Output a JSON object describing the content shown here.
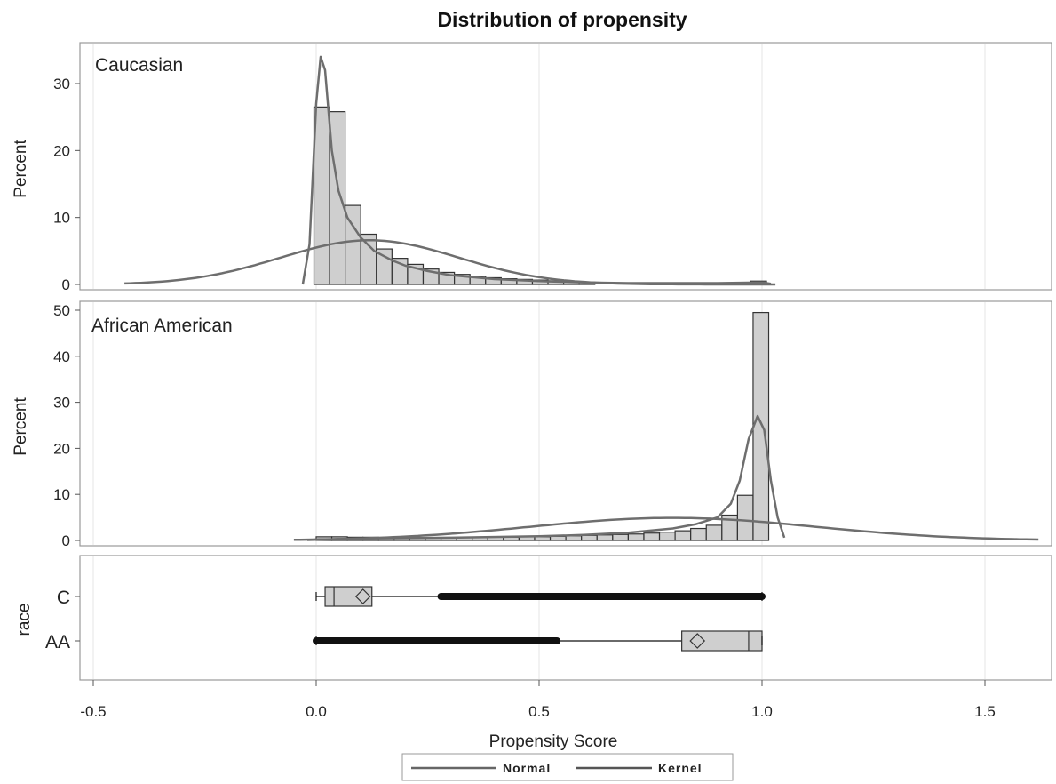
{
  "chart_data": {
    "type": "histogram",
    "title": "Distribution of propensity",
    "xlabel": "Propensity Score",
    "xlim": [
      -0.55,
      1.65
    ],
    "x_ticks": [
      -0.5,
      0.0,
      0.5,
      1.0,
      1.5
    ],
    "x_tick_labels": [
      "-0.5",
      "0.0",
      "0.5",
      "1.0",
      "1.5"
    ],
    "bin_width": 0.035,
    "grid": true,
    "legend_position": "bottom",
    "legend": [
      {
        "name": "Normal",
        "color": "#666666"
      },
      {
        "name": "Kernel",
        "color": "#555555"
      }
    ],
    "colors": {
      "bar_fill": "#cfcfcf",
      "bar_stroke": "#333333",
      "curve": "#6e6e6e",
      "panel_border": "#999999",
      "whisker": "#111111"
    },
    "panels": [
      {
        "label": "Caucasian",
        "ylabel": "Percent",
        "ylim": [
          -0.5,
          36
        ],
        "y_ticks": [
          0,
          10,
          20,
          30
        ],
        "bins": [
          {
            "x": 0.0,
            "pct": 26.5
          },
          {
            "x": 0.035,
            "pct": 25.8
          },
          {
            "x": 0.07,
            "pct": 11.8
          },
          {
            "x": 0.105,
            "pct": 7.5
          },
          {
            "x": 0.14,
            "pct": 5.3
          },
          {
            "x": 0.175,
            "pct": 3.9
          },
          {
            "x": 0.21,
            "pct": 3.0
          },
          {
            "x": 0.245,
            "pct": 2.3
          },
          {
            "x": 0.28,
            "pct": 1.8
          },
          {
            "x": 0.315,
            "pct": 1.5
          },
          {
            "x": 0.35,
            "pct": 1.2
          },
          {
            "x": 0.385,
            "pct": 1.0
          },
          {
            "x": 0.42,
            "pct": 0.85
          },
          {
            "x": 0.455,
            "pct": 0.75
          },
          {
            "x": 0.49,
            "pct": 0.65
          },
          {
            "x": 0.525,
            "pct": 0.55
          },
          {
            "x": 0.56,
            "pct": 0.45
          },
          {
            "x": 0.595,
            "pct": 0.35
          },
          {
            "x": 0.98,
            "pct": 0.5
          }
        ],
        "normal": {
          "mean": 0.12,
          "sd": 0.2,
          "peak": 6.6,
          "xrange": [
            -0.43,
            1.03
          ]
        },
        "kernel": [
          [
            -0.03,
            0
          ],
          [
            -0.015,
            6
          ],
          [
            -0.005,
            20
          ],
          [
            0.0,
            27
          ],
          [
            0.01,
            34
          ],
          [
            0.02,
            32
          ],
          [
            0.035,
            20
          ],
          [
            0.05,
            14
          ],
          [
            0.07,
            10
          ],
          [
            0.1,
            7
          ],
          [
            0.13,
            5
          ],
          [
            0.17,
            3.6
          ],
          [
            0.2,
            2.8
          ],
          [
            0.25,
            2.0
          ],
          [
            0.3,
            1.4
          ],
          [
            0.4,
            0.8
          ],
          [
            0.5,
            0.5
          ],
          [
            0.6,
            0.3
          ],
          [
            0.7,
            0.2
          ],
          [
            0.8,
            0.2
          ],
          [
            0.9,
            0.2
          ],
          [
            1.0,
            0.3
          ],
          [
            1.02,
            0.1
          ]
        ]
      },
      {
        "label": "African American",
        "ylabel": "Percent",
        "ylim": [
          -1,
          51
        ],
        "y_ticks": [
          0,
          10,
          20,
          30,
          40,
          50
        ],
        "bins": [
          {
            "x": 0.0,
            "pct": 0.8
          },
          {
            "x": 0.035,
            "pct": 0.8
          },
          {
            "x": 0.07,
            "pct": 0.7
          },
          {
            "x": 0.105,
            "pct": 0.7
          },
          {
            "x": 0.14,
            "pct": 0.6
          },
          {
            "x": 0.175,
            "pct": 0.6
          },
          {
            "x": 0.21,
            "pct": 0.6
          },
          {
            "x": 0.245,
            "pct": 0.5
          },
          {
            "x": 0.28,
            "pct": 0.5
          },
          {
            "x": 0.315,
            "pct": 0.6
          },
          {
            "x": 0.35,
            "pct": 0.6
          },
          {
            "x": 0.385,
            "pct": 0.7
          },
          {
            "x": 0.42,
            "pct": 0.7
          },
          {
            "x": 0.455,
            "pct": 0.8
          },
          {
            "x": 0.49,
            "pct": 0.8
          },
          {
            "x": 0.525,
            "pct": 0.9
          },
          {
            "x": 0.56,
            "pct": 1.0
          },
          {
            "x": 0.595,
            "pct": 1.1
          },
          {
            "x": 0.63,
            "pct": 1.2
          },
          {
            "x": 0.665,
            "pct": 1.3
          },
          {
            "x": 0.7,
            "pct": 1.4
          },
          {
            "x": 0.735,
            "pct": 1.6
          },
          {
            "x": 0.77,
            "pct": 1.8
          },
          {
            "x": 0.805,
            "pct": 2.1
          },
          {
            "x": 0.84,
            "pct": 2.6
          },
          {
            "x": 0.875,
            "pct": 3.3
          },
          {
            "x": 0.91,
            "pct": 5.5
          },
          {
            "x": 0.945,
            "pct": 9.8
          },
          {
            "x": 0.98,
            "pct": 49.5
          }
        ],
        "normal": {
          "mean": 0.8,
          "sd": 0.32,
          "peak": 4.9,
          "xrange": [
            -0.05,
            1.62
          ]
        },
        "kernel": [
          [
            -0.02,
            0.1
          ],
          [
            0.1,
            0.4
          ],
          [
            0.3,
            0.6
          ],
          [
            0.5,
            0.9
          ],
          [
            0.6,
            1.2
          ],
          [
            0.7,
            1.7
          ],
          [
            0.8,
            2.6
          ],
          [
            0.85,
            3.5
          ],
          [
            0.9,
            5.0
          ],
          [
            0.93,
            8
          ],
          [
            0.95,
            13
          ],
          [
            0.97,
            22
          ],
          [
            0.99,
            27
          ],
          [
            1.005,
            24
          ],
          [
            1.02,
            13
          ],
          [
            1.035,
            5
          ],
          [
            1.05,
            0.6
          ]
        ]
      },
      {
        "label": "",
        "ylabel": "race",
        "type": "box",
        "boxes": [
          {
            "category": "C",
            "min": 0.0,
            "q1": 0.02,
            "median": 0.04,
            "mean": 0.105,
            "q3": 0.125,
            "max": 1.0,
            "outlier_range": [
              0.28,
              1.0
            ]
          },
          {
            "category": "AA",
            "min": 0.0,
            "q1": 0.82,
            "median": 0.97,
            "mean": 0.855,
            "q3": 1.0,
            "max": 1.0,
            "outlier_range": [
              0.0,
              0.54
            ]
          }
        ]
      }
    ]
  }
}
